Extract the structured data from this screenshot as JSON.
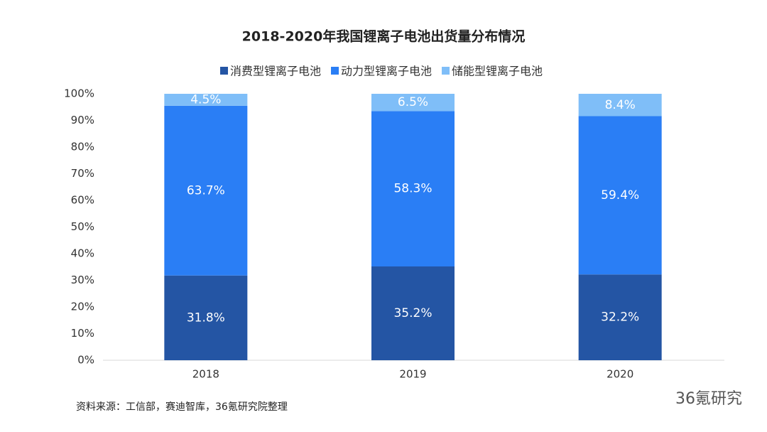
{
  "chart_data": {
    "type": "stacked_bar",
    "title": "2018-2020年我国锂离子电池出货量分布情况",
    "categories": [
      "2018",
      "2019",
      "2020"
    ],
    "series": [
      {
        "name": "消费型锂离子电池",
        "color": "#2455a4",
        "values": [
          31.8,
          35.2,
          32.2
        ],
        "value_labels": [
          "31.8%",
          "35.2%",
          "32.2%"
        ]
      },
      {
        "name": "动力型锂离子电池",
        "color": "#2a7ef5",
        "values": [
          63.7,
          58.3,
          59.4
        ],
        "value_labels": [
          "63.7%",
          "58.3%",
          "59.4%"
        ]
      },
      {
        "name": "储能型锂离子电池",
        "color": "#7fbef8",
        "values": [
          4.5,
          6.5,
          8.4
        ],
        "value_labels": [
          "4.5%",
          "6.5%",
          "8.4%"
        ]
      }
    ],
    "ylim": [
      0,
      100
    ],
    "yticks": [
      {
        "value": 0,
        "label": "0%"
      },
      {
        "value": 10,
        "label": "10%"
      },
      {
        "value": 20,
        "label": "20%"
      },
      {
        "value": 30,
        "label": "30%"
      },
      {
        "value": 40,
        "label": "40%"
      },
      {
        "value": 50,
        "label": "50%"
      },
      {
        "value": 60,
        "label": "60%"
      },
      {
        "value": 70,
        "label": "70%"
      },
      {
        "value": 80,
        "label": "80%"
      },
      {
        "value": 90,
        "label": "90%"
      },
      {
        "value": 100,
        "label": "100%"
      }
    ],
    "grid": false,
    "legend": "top",
    "source": "资料来源：工信部，赛迪智库，36氪研究院整理",
    "watermark": "36氪研究"
  }
}
